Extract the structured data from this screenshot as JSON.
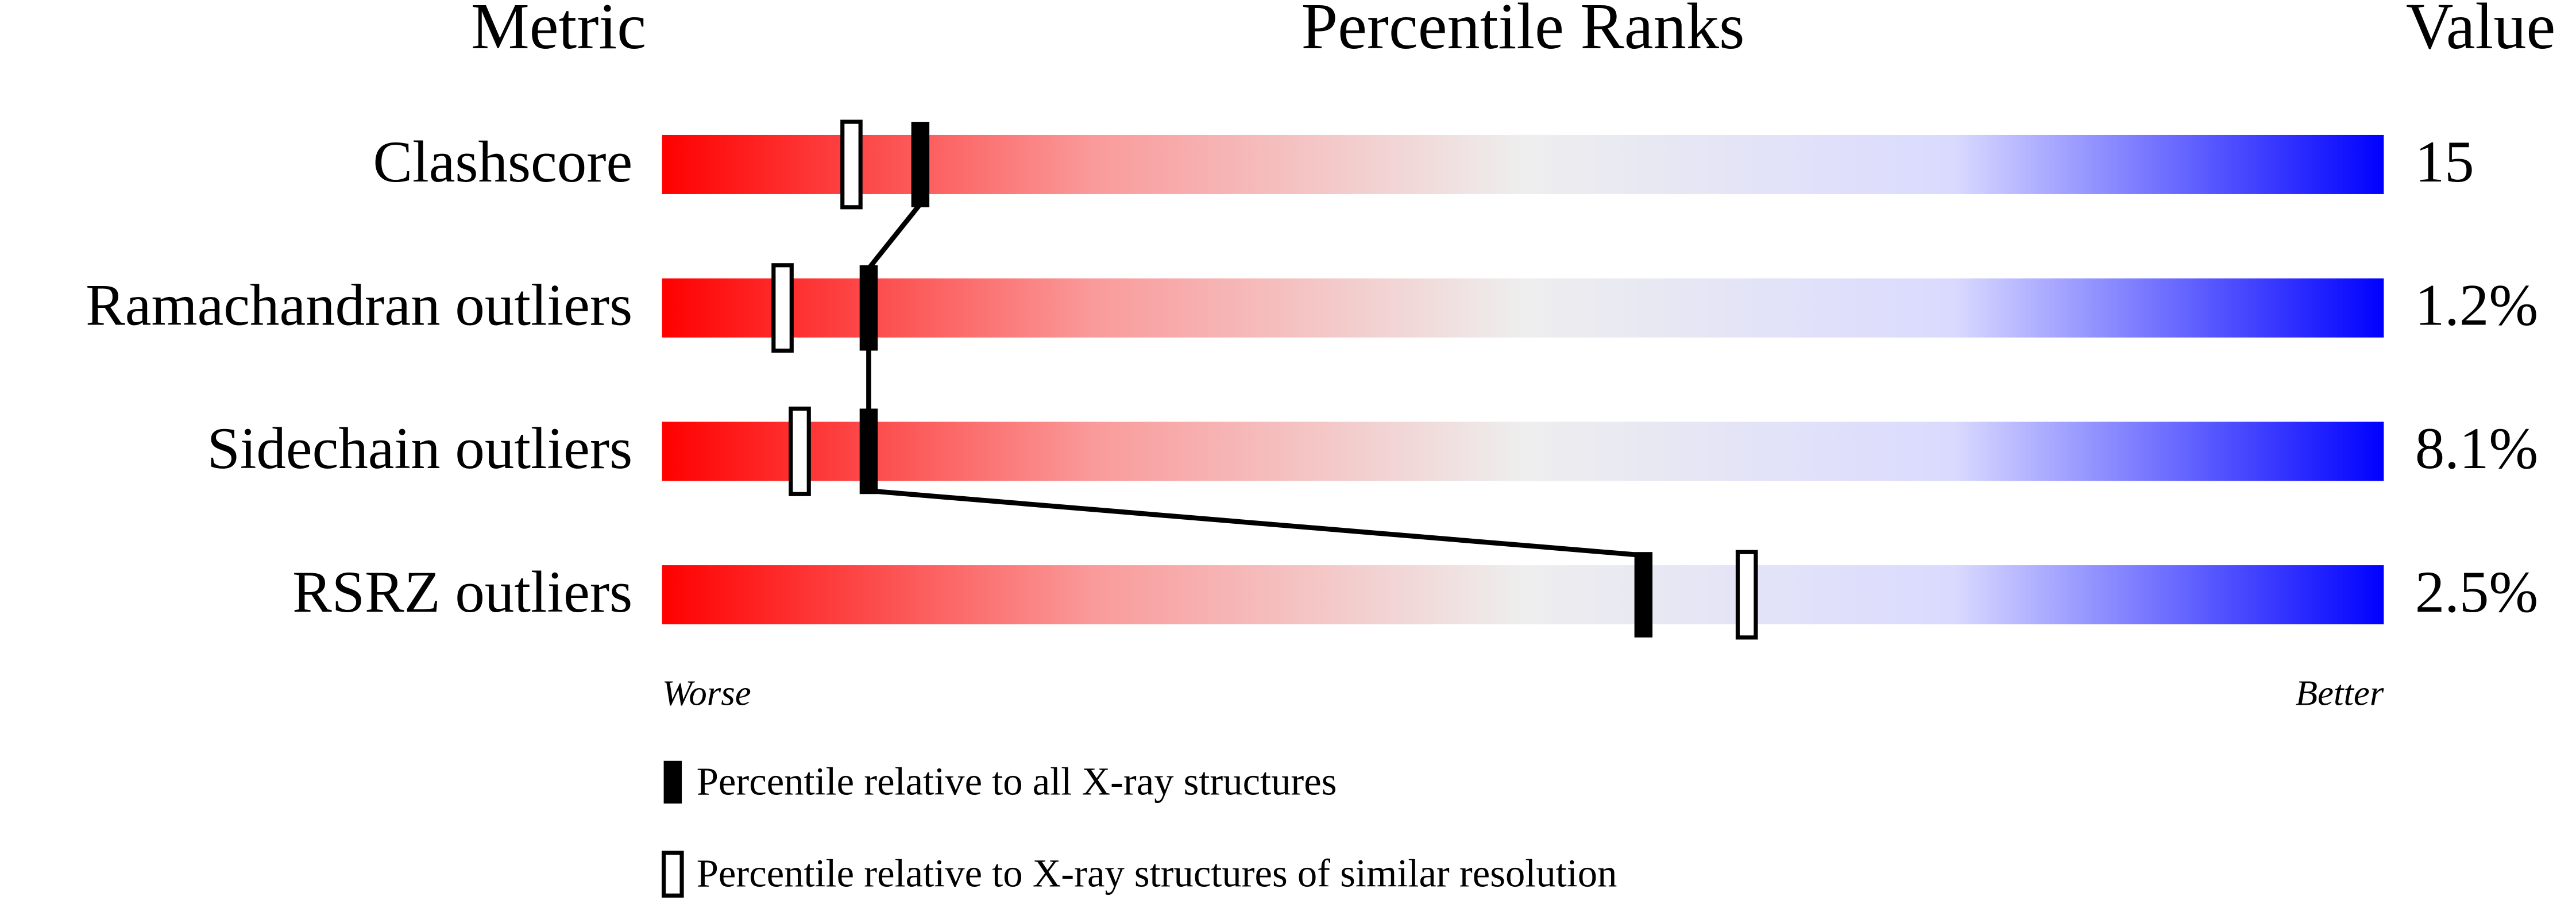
{
  "chart_data": {
    "type": "percentile-slider",
    "headers": {
      "metric": "Metric",
      "ranks": "Percentile Ranks",
      "value": "Value"
    },
    "categories": [
      "Clashscore",
      "Ramachandran outliers",
      "Sidechain outliers",
      "RSRZ outliers"
    ],
    "values": [
      15,
      1.2,
      8.1,
      2.5
    ],
    "value_labels": [
      "15",
      "1.2%",
      "8.1%",
      "2.5%"
    ],
    "series": [
      {
        "name": "Percentile relative to all X-ray structures",
        "color": "#000000",
        "filled": true,
        "values": [
          15,
          12,
          12,
          57
        ]
      },
      {
        "name": "Percentile relative to X-ray structures of similar resolution",
        "color": "#000000",
        "filled": false,
        "values": [
          11,
          7,
          8,
          63
        ]
      }
    ],
    "xlim": [
      0,
      100
    ],
    "scale_labels": {
      "low": "Worse",
      "high": "Better"
    },
    "gradient": [
      "#ff0000",
      "#fa9a9a",
      "#eeeeee",
      "#dadaff",
      "#0000ff"
    ],
    "connect_series": 0
  }
}
